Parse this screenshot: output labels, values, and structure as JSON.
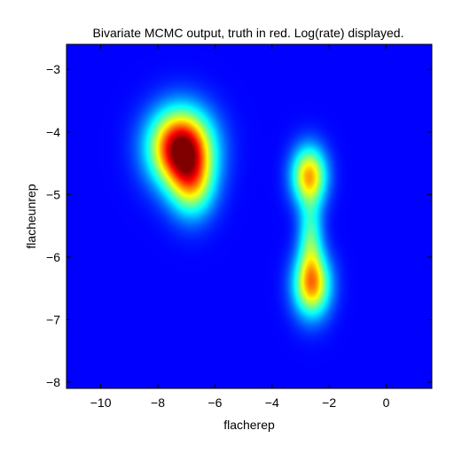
{
  "chart_data": {
    "type": "heatmap",
    "title": "Bivariate MCMC output, truth in red. Log(rate) displayed.",
    "xlabel": "flacherep",
    "ylabel": "flacheunrep",
    "xlim": [
      -11.2,
      1.6
    ],
    "ylim": [
      -8.1,
      -2.6
    ],
    "xticks": [
      -10,
      -8,
      -6,
      -4,
      -2,
      0
    ],
    "yticks": [
      -3,
      -4,
      -5,
      -6,
      -7,
      -8
    ],
    "xtick_labels": [
      "−10",
      "−8",
      "−6",
      "−4",
      "−2",
      "0"
    ],
    "ytick_labels": [
      "−3",
      "−4",
      "−5",
      "−6",
      "−7",
      "−8"
    ],
    "colormap": "jet",
    "grid": false,
    "peaks": [
      {
        "x": -7.2,
        "y": -4.25,
        "value": 1.0
      },
      {
        "x": -6.8,
        "y": -4.85,
        "value": 0.45
      },
      {
        "x": -2.7,
        "y": -4.7,
        "value": 0.65
      },
      {
        "x": -2.6,
        "y": -6.45,
        "value": 0.65
      },
      {
        "x": -2.65,
        "y": -5.7,
        "value": 0.35
      }
    ]
  }
}
